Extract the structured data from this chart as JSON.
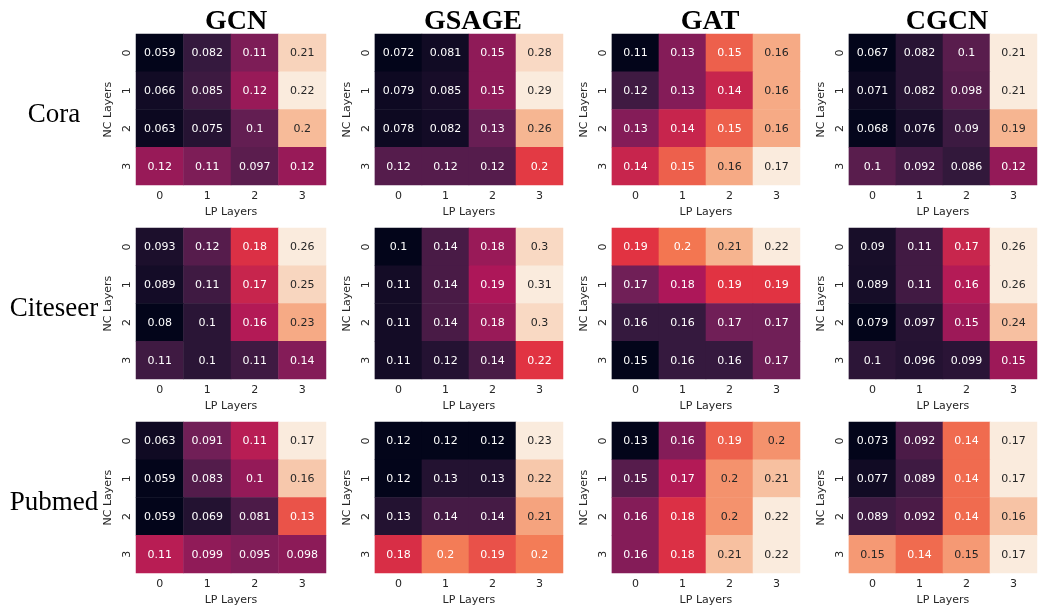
{
  "chart_data": [
    {
      "type": "heatmap",
      "title": "GCN",
      "annotations": [
        "Cora"
      ],
      "xlabel": "LP Layers",
      "ylabel": "NC Layers",
      "categories": [
        "0",
        "1",
        "2",
        "3"
      ],
      "y_categories": [
        "0",
        "1",
        "2",
        "3"
      ],
      "cells": [
        [
          0.059,
          0.082,
          0.11,
          0.21
        ],
        [
          0.066,
          0.085,
          0.12,
          0.22
        ],
        [
          0.063,
          0.075,
          0.1,
          0.2
        ],
        [
          0.12,
          0.11,
          0.097,
          0.12
        ]
      ],
      "data_labels": true
    },
    {
      "type": "heatmap",
      "title": "GSAGE",
      "xlabel": "LP Layers",
      "ylabel": "NC Layers",
      "categories": [
        "0",
        "1",
        "2",
        "3"
      ],
      "y_categories": [
        "0",
        "1",
        "2",
        "3"
      ],
      "cells": [
        [
          0.072,
          0.081,
          0.15,
          0.28
        ],
        [
          0.079,
          0.085,
          0.15,
          0.29
        ],
        [
          0.078,
          0.082,
          0.13,
          0.26
        ],
        [
          0.12,
          0.12,
          0.12,
          0.2
        ]
      ],
      "data_labels": true
    },
    {
      "type": "heatmap",
      "title": "GAT",
      "xlabel": "LP Layers",
      "ylabel": "NC Layers",
      "categories": [
        "0",
        "1",
        "2",
        "3"
      ],
      "y_categories": [
        "0",
        "1",
        "2",
        "3"
      ],
      "cells": [
        [
          0.11,
          0.13,
          0.15,
          0.16
        ],
        [
          0.12,
          0.13,
          0.14,
          0.16
        ],
        [
          0.13,
          0.14,
          0.15,
          0.16
        ],
        [
          0.14,
          0.15,
          0.16,
          0.17
        ]
      ],
      "data_labels": true
    },
    {
      "type": "heatmap",
      "title": "CGCN",
      "xlabel": "LP Layers",
      "ylabel": "NC Layers",
      "categories": [
        "0",
        "1",
        "2",
        "3"
      ],
      "y_categories": [
        "0",
        "1",
        "2",
        "3"
      ],
      "cells": [
        [
          0.067,
          0.082,
          0.1,
          0.21
        ],
        [
          0.071,
          0.082,
          0.098,
          0.21
        ],
        [
          0.068,
          0.076,
          0.09,
          0.19
        ],
        [
          0.1,
          0.092,
          0.086,
          0.12
        ]
      ],
      "data_labels": true
    },
    {
      "type": "heatmap",
      "annotations": [
        "Citeseer"
      ],
      "xlabel": "LP Layers",
      "ylabel": "NC Layers",
      "categories": [
        "0",
        "1",
        "2",
        "3"
      ],
      "y_categories": [
        "0",
        "1",
        "2",
        "3"
      ],
      "cells": [
        [
          0.093,
          0.12,
          0.18,
          0.26
        ],
        [
          0.089,
          0.11,
          0.17,
          0.25
        ],
        [
          0.08,
          0.1,
          0.16,
          0.23
        ],
        [
          0.11,
          0.1,
          0.11,
          0.14
        ]
      ],
      "data_labels": true
    },
    {
      "type": "heatmap",
      "xlabel": "LP Layers",
      "ylabel": "NC Layers",
      "categories": [
        "0",
        "1",
        "2",
        "3"
      ],
      "y_categories": [
        "0",
        "1",
        "2",
        "3"
      ],
      "cells": [
        [
          0.1,
          0.14,
          0.18,
          0.3
        ],
        [
          0.11,
          0.14,
          0.19,
          0.31
        ],
        [
          0.11,
          0.14,
          0.18,
          0.3
        ],
        [
          0.11,
          0.12,
          0.14,
          0.22
        ]
      ],
      "data_labels": true
    },
    {
      "type": "heatmap",
      "xlabel": "LP Layers",
      "ylabel": "NC Layers",
      "categories": [
        "0",
        "1",
        "2",
        "3"
      ],
      "y_categories": [
        "0",
        "1",
        "2",
        "3"
      ],
      "cells": [
        [
          0.19,
          0.2,
          0.21,
          0.22
        ],
        [
          0.17,
          0.18,
          0.19,
          0.19
        ],
        [
          0.16,
          0.16,
          0.17,
          0.17
        ],
        [
          0.15,
          0.16,
          0.16,
          0.17
        ]
      ],
      "data_labels": true
    },
    {
      "type": "heatmap",
      "xlabel": "LP Layers",
      "ylabel": "NC Layers",
      "categories": [
        "0",
        "1",
        "2",
        "3"
      ],
      "y_categories": [
        "0",
        "1",
        "2",
        "3"
      ],
      "cells": [
        [
          0.09,
          0.11,
          0.17,
          0.26
        ],
        [
          0.089,
          0.11,
          0.16,
          0.26
        ],
        [
          0.079,
          0.097,
          0.15,
          0.24
        ],
        [
          0.1,
          0.096,
          0.099,
          0.15
        ]
      ],
      "data_labels": true
    },
    {
      "type": "heatmap",
      "annotations": [
        "Pubmed"
      ],
      "xlabel": "LP Layers",
      "ylabel": "NC Layers",
      "categories": [
        "0",
        "1",
        "2",
        "3"
      ],
      "y_categories": [
        "0",
        "1",
        "2",
        "3"
      ],
      "cells": [
        [
          0.063,
          0.091,
          0.11,
          0.17
        ],
        [
          0.059,
          0.083,
          0.1,
          0.16
        ],
        [
          0.059,
          0.069,
          0.081,
          0.13
        ],
        [
          0.11,
          0.099,
          0.095,
          0.098
        ]
      ],
      "data_labels": true
    },
    {
      "type": "heatmap",
      "xlabel": "LP Layers",
      "ylabel": "NC Layers",
      "categories": [
        "0",
        "1",
        "2",
        "3"
      ],
      "y_categories": [
        "0",
        "1",
        "2",
        "3"
      ],
      "cells": [
        [
          0.12,
          0.12,
          0.12,
          0.23
        ],
        [
          0.12,
          0.13,
          0.13,
          0.22
        ],
        [
          0.13,
          0.14,
          0.14,
          0.21
        ],
        [
          0.18,
          0.2,
          0.19,
          0.2
        ]
      ],
      "data_labels": true
    },
    {
      "type": "heatmap",
      "xlabel": "LP Layers",
      "ylabel": "NC Layers",
      "categories": [
        "0",
        "1",
        "2",
        "3"
      ],
      "y_categories": [
        "0",
        "1",
        "2",
        "3"
      ],
      "cells": [
        [
          0.13,
          0.16,
          0.19,
          0.2
        ],
        [
          0.15,
          0.17,
          0.2,
          0.21
        ],
        [
          0.16,
          0.18,
          0.2,
          0.22
        ],
        [
          0.16,
          0.18,
          0.21,
          0.22
        ]
      ],
      "data_labels": true
    },
    {
      "type": "heatmap",
      "xlabel": "LP Layers",
      "ylabel": "NC Layers",
      "categories": [
        "0",
        "1",
        "2",
        "3"
      ],
      "y_categories": [
        "0",
        "1",
        "2",
        "3"
      ],
      "cells": [
        [
          0.073,
          0.092,
          0.14,
          0.17
        ],
        [
          0.077,
          0.089,
          0.14,
          0.17
        ],
        [
          0.089,
          0.092,
          0.14,
          0.16
        ],
        [
          0.15,
          0.14,
          0.15,
          0.17
        ]
      ],
      "data_labels": true
    }
  ]
}
